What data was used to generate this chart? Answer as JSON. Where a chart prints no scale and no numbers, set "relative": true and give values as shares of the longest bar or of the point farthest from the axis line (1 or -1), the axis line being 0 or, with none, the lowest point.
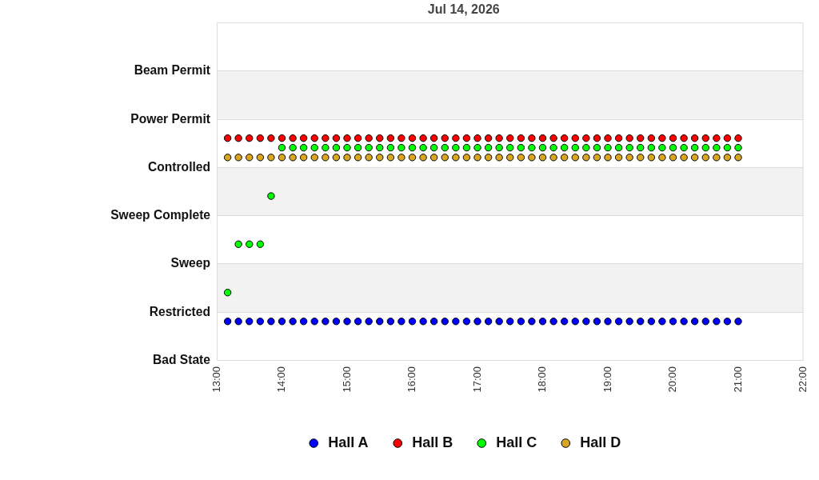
{
  "chart_data": {
    "type": "scatter",
    "title": "Jul 14, 2026",
    "relative": true,
    "x": [
      13.167,
      13.333,
      13.5,
      13.667,
      13.833,
      14,
      14.167,
      14.333,
      14.5,
      14.667,
      14.833,
      15,
      15.167,
      15.333,
      15.5,
      15.667,
      15.833,
      16,
      16.167,
      16.333,
      16.5,
      16.667,
      16.833,
      17,
      17.167,
      17.333,
      17.5,
      17.667,
      17.833,
      18,
      18.167,
      18.333,
      18.5,
      18.667,
      18.833,
      19,
      19.167,
      19.333,
      19.5,
      19.667,
      19.833,
      20,
      20.167,
      20.333,
      20.5,
      20.667,
      20.833,
      21
    ],
    "xlim": [
      13,
      22
    ],
    "xticks": [
      {
        "value": 13,
        "label": "13:00"
      },
      {
        "value": 14,
        "label": "14:00"
      },
      {
        "value": 15,
        "label": "15:00"
      },
      {
        "value": 16,
        "label": "16:00"
      },
      {
        "value": 17,
        "label": "17:00"
      },
      {
        "value": 18,
        "label": "18:00"
      },
      {
        "value": 19,
        "label": "19:00"
      },
      {
        "value": 20,
        "label": "20:00"
      },
      {
        "value": 21,
        "label": "21:00"
      },
      {
        "value": 22,
        "label": "22:00"
      }
    ],
    "series": [
      {
        "name": "Hall A",
        "color": "#0000ff",
        "values": [
          0.174,
          0.174,
          0.174,
          0.174,
          0.174,
          0.174,
          0.174,
          0.174,
          0.174,
          0.174,
          0.174,
          0.174,
          0.174,
          0.174,
          0.174,
          0.174,
          0.174,
          0.174,
          0.174,
          0.174,
          0.174,
          0.174,
          0.174,
          0.174,
          0.174,
          0.174,
          0.174,
          0.174,
          0.174,
          0.174,
          0.174,
          0.174,
          0.174,
          0.174,
          0.174,
          0.174,
          0.174,
          0.174,
          0.174,
          0.174,
          0.174,
          0.174,
          0.174,
          0.174,
          0.174,
          0.174,
          0.174,
          0.174
        ]
      },
      {
        "name": "Hall B",
        "color": "#ff0000",
        "values": [
          1,
          1,
          1,
          1,
          1,
          1,
          1,
          1,
          1,
          1,
          1,
          1,
          1,
          1,
          1,
          1,
          1,
          1,
          1,
          1,
          1,
          1,
          1,
          1,
          1,
          1,
          1,
          1,
          1,
          1,
          1,
          1,
          1,
          1,
          1,
          1,
          1,
          1,
          1,
          1,
          1,
          1,
          1,
          1,
          1,
          1,
          1,
          1
        ]
      },
      {
        "name": "Hall C",
        "color": "#00ff00",
        "values": [
          0.304,
          0.522,
          0.522,
          0.522,
          0.739,
          0.957,
          0.957,
          0.957,
          0.957,
          0.957,
          0.957,
          0.957,
          0.957,
          0.957,
          0.957,
          0.957,
          0.957,
          0.957,
          0.957,
          0.957,
          0.957,
          0.957,
          0.957,
          0.957,
          0.957,
          0.957,
          0.957,
          0.957,
          0.957,
          0.957,
          0.957,
          0.957,
          0.957,
          0.957,
          0.957,
          0.957,
          0.957,
          0.957,
          0.957,
          0.957,
          0.957,
          0.957,
          0.957,
          0.957,
          0.957,
          0.957,
          0.957,
          0.957
        ]
      },
      {
        "name": "Hall D",
        "color": "#daa520",
        "values": [
          0.913,
          0.913,
          0.913,
          0.913,
          0.913,
          0.913,
          0.913,
          0.913,
          0.913,
          0.913,
          0.913,
          0.913,
          0.913,
          0.913,
          0.913,
          0.913,
          0.913,
          0.913,
          0.913,
          0.913,
          0.913,
          0.913,
          0.913,
          0.913,
          0.913,
          0.913,
          0.913,
          0.913,
          0.913,
          0.913,
          0.913,
          0.913,
          0.913,
          0.913,
          0.913,
          0.913,
          0.913,
          0.913,
          0.913,
          0.913,
          0.913,
          0.913,
          0.913,
          0.913,
          0.913,
          0.913,
          0.913,
          0.913
        ]
      }
    ],
    "ref_lines": [
      {
        "axis": "y",
        "value": 0,
        "label": "Bad State",
        "color": "#dcdcdc"
      },
      {
        "axis": "y",
        "value": 0.217,
        "label": "Restricted",
        "color": "#dcdcdc"
      },
      {
        "axis": "y",
        "value": 0.435,
        "label": "Sweep",
        "color": "#dcdcdc"
      },
      {
        "axis": "y",
        "value": 0.652,
        "label": "Sweep Complete",
        "color": "#dcdcdc"
      },
      {
        "axis": "y",
        "value": 0.87,
        "label": "Controlled",
        "color": "#dcdcdc"
      },
      {
        "axis": "y",
        "value": 1.087,
        "label": "Power Permit",
        "color": "#dcdcdc"
      },
      {
        "axis": "y",
        "value": 1.304,
        "label": "Beam Permit",
        "color": "#dcdcdc"
      }
    ],
    "bands": [
      {
        "axis": "y",
        "from": 0.217,
        "to": 0.435,
        "color": "#f2f2f2"
      },
      {
        "axis": "y",
        "from": 0.652,
        "to": 0.87,
        "color": "#f2f2f2"
      },
      {
        "axis": "y",
        "from": 1.087,
        "to": 1.304,
        "color": "#f2f2f2"
      }
    ],
    "legend": "bottom",
    "marker": "circle"
  }
}
